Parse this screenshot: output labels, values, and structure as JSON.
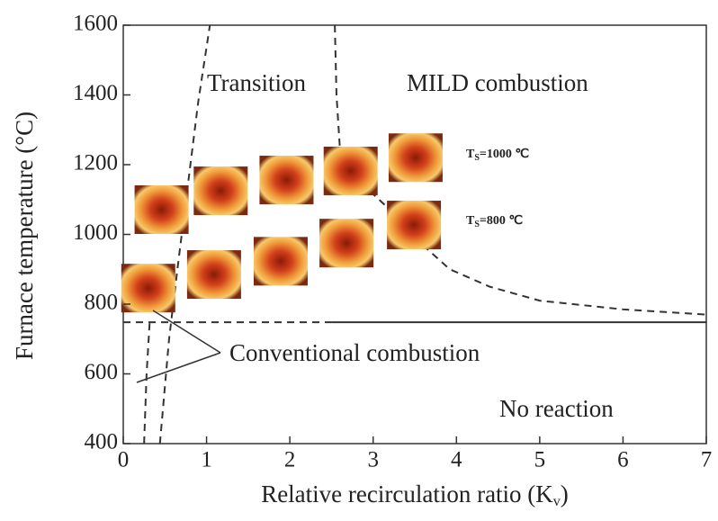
{
  "chart_data": {
    "type": "line",
    "xlabel": {
      "main": "Relative recirculation ratio (K",
      "sub": "v",
      "end": ")"
    },
    "ylabel": "Furnace temperature (°C)",
    "xlim": [
      0,
      7
    ],
    "xticks": [
      0,
      1,
      2,
      3,
      4,
      5,
      6,
      7
    ],
    "ylim": [
      400,
      1600
    ],
    "yticks": [
      400,
      600,
      800,
      1000,
      1200,
      1400,
      1600
    ],
    "grid": false,
    "series": [
      {
        "color": "#333333",
        "dash": true,
        "x": [
          0.25,
          0.28,
          0.32
        ],
        "values": [
          400,
          600,
          760
        ]
      },
      {
        "color": "#333333",
        "dash": true,
        "x": [
          0.44,
          0.55,
          0.65,
          0.78,
          0.9,
          1.04
        ],
        "values": [
          400,
          700,
          900,
          1150,
          1380,
          1600
        ]
      },
      {
        "color": "#333333",
        "dash": true,
        "x": [
          0,
          2.5
        ],
        "values": [
          748,
          748
        ]
      },
      {
        "color": "#333333",
        "dash": false,
        "x": [
          2.5,
          7
        ],
        "values": [
          748,
          748
        ]
      },
      {
        "color": "#333333",
        "dash": true,
        "x": [
          2.54,
          2.56,
          2.6,
          2.8,
          3.16,
          3.5,
          3.92,
          4.4,
          5.0,
          6.0,
          7.0
        ],
        "values": [
          1600,
          1400,
          1250,
          1160,
          1080,
          990,
          900,
          850,
          810,
          785,
          770
        ]
      }
    ],
    "images": {
      "x": [
        0.46,
        1.17,
        1.96,
        2.73,
        3.51,
        0.3,
        1.09,
        1.89,
        2.68,
        3.49
      ],
      "values": [
        1071,
        1125,
        1156,
        1182,
        1220,
        846,
        885,
        923,
        975,
        1027
      ]
    },
    "annotations": {
      "transition": "Transition",
      "mild": "MILD combustion",
      "ts1000": {
        "main": "T",
        "sub": "S",
        "rest": "=1000 ℃"
      },
      "ts800": {
        "main": "T",
        "sub": "S",
        "rest": "=800 ℃"
      },
      "conventional": "Conventional combustion",
      "no_reaction": "No reaction"
    }
  }
}
